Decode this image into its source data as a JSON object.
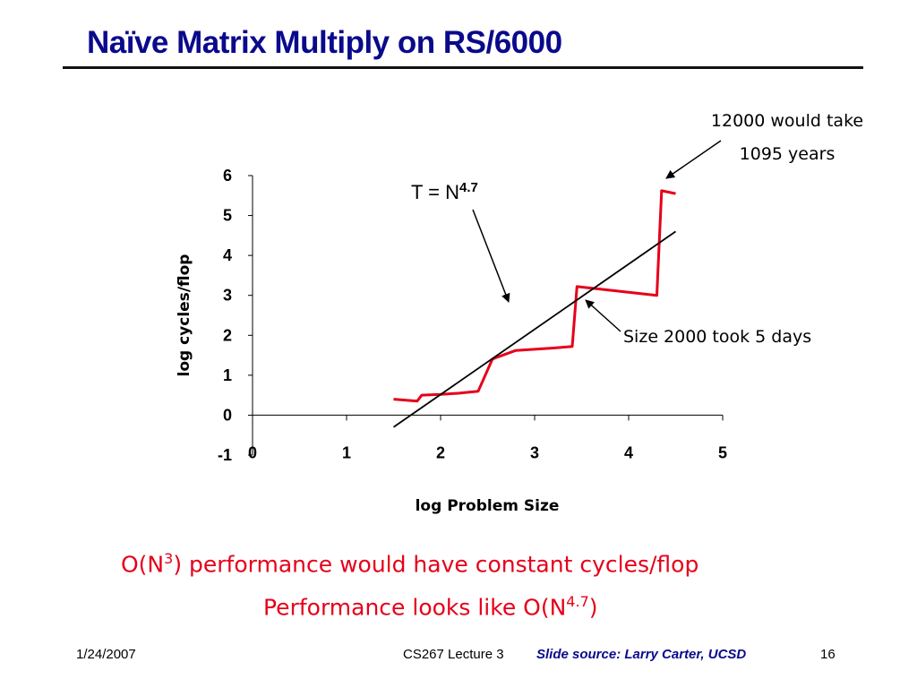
{
  "slide": {
    "title": "Naïve Matrix Multiply on RS/6000",
    "bottom_line_1": {
      "prefix": "O(N",
      "sup": "3",
      "suffix": ") performance would have constant cycles/flop"
    },
    "bottom_line_2": {
      "prefix": "Performance looks like O(N",
      "sup": "4.7",
      "suffix": ")"
    },
    "footer": {
      "date": "1/24/2007",
      "course": "CS267 Lecture 3",
      "source": "Slide source: Larry Carter, UCSD",
      "page": "16"
    }
  },
  "colors": {
    "title": "#0a0a8c",
    "data_line": "#e6001a",
    "fit_line": "#000000",
    "bottom_text": "#e6001a"
  },
  "chart_data": {
    "type": "line",
    "xlabel": "log Problem Size",
    "ylabel": "log cycles/flop",
    "xlim": [
      0,
      5
    ],
    "ylim": [
      -1,
      6
    ],
    "x_ticks": [
      "0",
      "1",
      "2",
      "3",
      "4",
      "5"
    ],
    "y_ticks": [
      "-1",
      "0",
      "1",
      "2",
      "3",
      "4",
      "5",
      "6"
    ],
    "series": [
      {
        "x": [
          1.5,
          1.75,
          1.8,
          2.0,
          2.2,
          2.4,
          2.55,
          2.6,
          2.8,
          3.0,
          3.2,
          3.4,
          3.45,
          4.3,
          4.35,
          4.5
        ],
        "y": [
          0.4,
          0.35,
          0.5,
          0.52,
          0.55,
          0.6,
          1.4,
          1.45,
          1.62,
          1.65,
          1.68,
          1.72,
          3.22,
          3.0,
          5.62,
          5.55
        ]
      },
      {
        "x": [
          1.5,
          4.5
        ],
        "y": [
          -0.3,
          4.6
        ]
      }
    ],
    "annotations": {
      "formula": {
        "prefix": "T = N",
        "sup": "4.7"
      },
      "top_right": [
        "12000 would take",
        "1095 years"
      ],
      "mid_right": "Size 2000 took 5 days"
    }
  }
}
